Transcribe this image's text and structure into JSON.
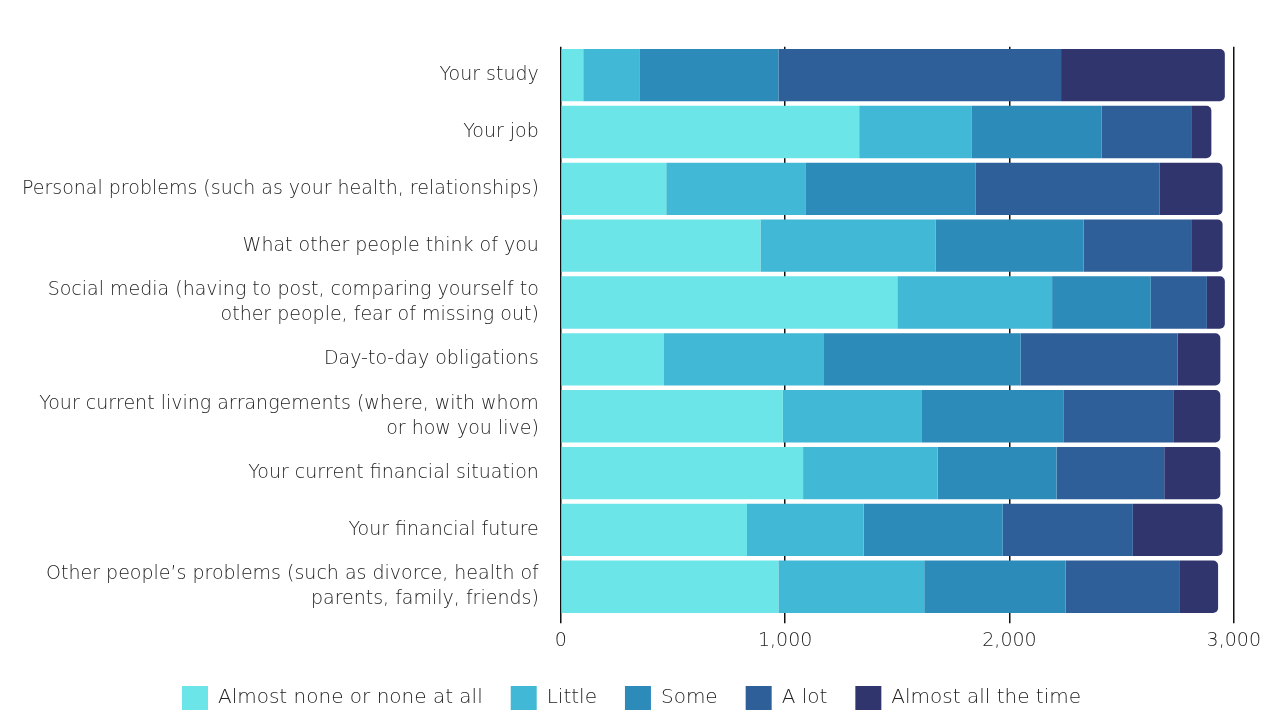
{
  "chart_data": {
    "type": "bar",
    "orientation": "horizontal",
    "stacked": true,
    "categories": [
      "Your study",
      "Your job",
      "Personal problems (such as your health, relationships)",
      "What other people think of you",
      "Social media (having to post, comparing yourself to other people, fear of missing out)",
      "Day-to-day obligations",
      "Your current living arrangements (where, with whom or how you live)",
      "Your current financial situation",
      "Your financial future",
      "Other people’s problems (such as divorce, health of parents, family, friends)"
    ],
    "series": [
      {
        "name": "Almost none or none at all",
        "color": "#6ce5e8",
        "values": [
          100,
          1330,
          470,
          890,
          1500,
          460,
          990,
          1080,
          830,
          970
        ]
      },
      {
        "name": "Little",
        "color": "#41b8d5",
        "values": [
          250,
          500,
          620,
          780,
          690,
          710,
          620,
          600,
          520,
          650
        ]
      },
      {
        "name": "Some",
        "color": "#2d8bba",
        "values": [
          620,
          580,
          760,
          660,
          440,
          880,
          630,
          530,
          620,
          630
        ]
      },
      {
        "name": "A lot",
        "color": "#2f5f98",
        "values": [
          1260,
          400,
          820,
          480,
          250,
          700,
          490,
          480,
          580,
          510
        ]
      },
      {
        "name": "Almost all the time",
        "color": "#31356e",
        "values": [
          730,
          90,
          280,
          140,
          80,
          190,
          210,
          250,
          400,
          170
        ]
      }
    ],
    "xlim": [
      0,
      3000
    ],
    "xticks": [
      0,
      {
        "value": 1000,
        "label": "1,000"
      },
      {
        "value": 2000,
        "label": "2,000"
      },
      {
        "value": 3000,
        "label": "3,000"
      }
    ],
    "grid": "x",
    "legend": "bottom"
  }
}
